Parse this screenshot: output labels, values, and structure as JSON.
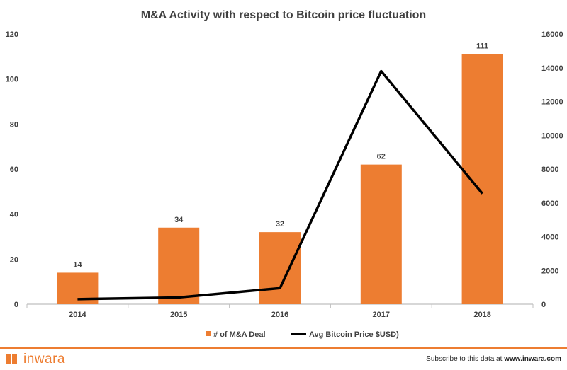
{
  "colors": {
    "bar": "#ed7d31",
    "line": "#000000",
    "axis": "#bfbfbf",
    "brand": "#ed7d31"
  },
  "chart_data": {
    "type": "bar",
    "title": "M&A Activity with respect to Bitcoin price fluctuation",
    "categories": [
      "2014",
      "2015",
      "2016",
      "2017",
      "2018"
    ],
    "series": [
      {
        "name": "# of M&A Deal",
        "type": "bar",
        "axis": "left",
        "values": [
          14,
          34,
          32,
          62,
          111
        ],
        "data_labels": [
          "14",
          "34",
          "32",
          "62",
          "111"
        ]
      },
      {
        "name": "Avg Bitcoin Price $USD)",
        "type": "line",
        "axis": "right",
        "values": [
          300,
          400,
          950,
          13800,
          6550
        ]
      }
    ],
    "y_left": {
      "range": [
        0,
        120
      ],
      "ticks": [
        0,
        20,
        40,
        60,
        80,
        100,
        120
      ]
    },
    "y_right": {
      "range": [
        0,
        16000
      ],
      "ticks": [
        0,
        2000,
        4000,
        6000,
        8000,
        10000,
        12000,
        14000,
        16000
      ]
    },
    "grid": false,
    "legend_position": "bottom"
  },
  "footer": {
    "brand": "inwara",
    "subscribe_text": "Subscribe to this data at",
    "subscribe_link": "www.inwara.com"
  }
}
